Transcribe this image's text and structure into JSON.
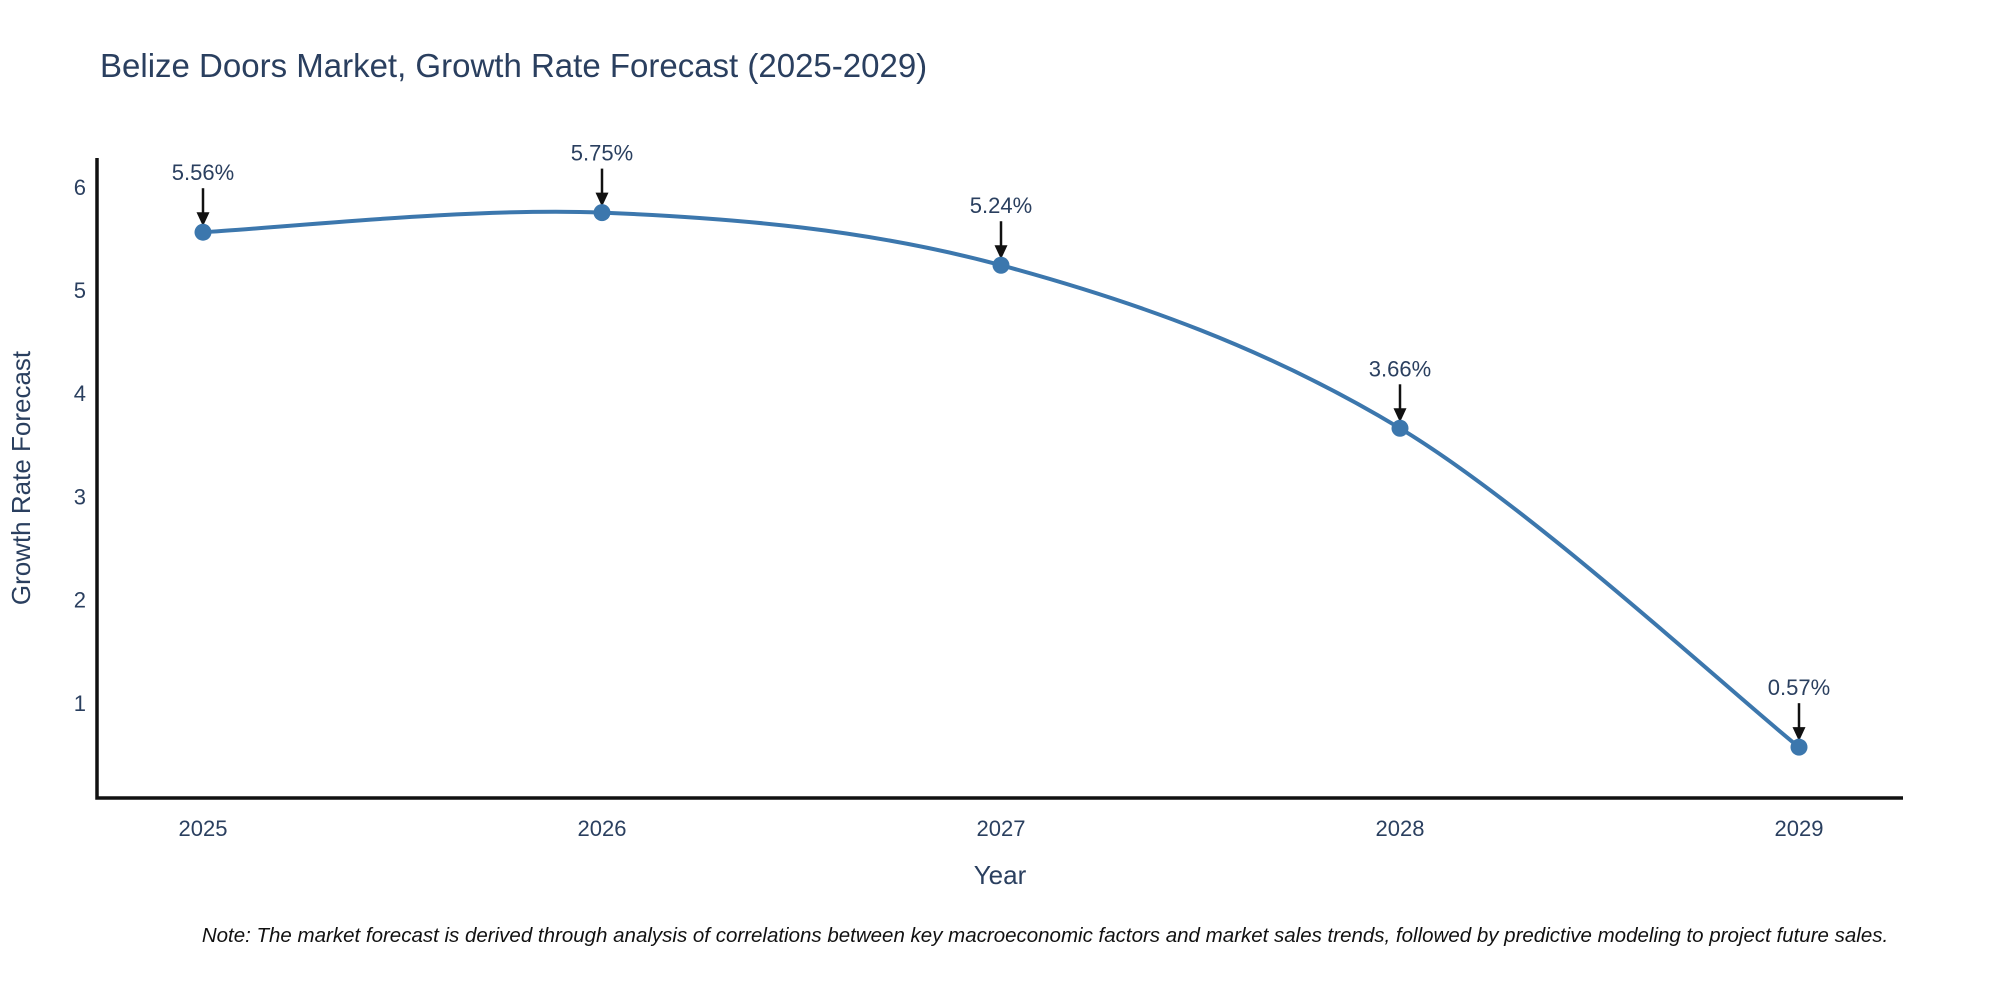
{
  "chart_data": {
    "type": "line",
    "title": "Belize Doors Market, Growth Rate Forecast (2025-2029)",
    "xlabel": "Year",
    "ylabel": "Growth Rate Forecast",
    "x": [
      2025,
      2026,
      2027,
      2028,
      2029
    ],
    "xticks": [
      "2025",
      "2026",
      "2027",
      "2028",
      "2029"
    ],
    "series": [
      {
        "name": "Growth Rate Forecast",
        "values": [
          5.56,
          5.75,
          5.24,
          3.66,
          0.57
        ]
      }
    ],
    "point_labels": [
      "5.56%",
      "5.75%",
      "5.24%",
      "3.66%",
      "0.57%"
    ],
    "yticks": [
      1,
      2,
      3,
      4,
      5,
      6
    ],
    "ylim": [
      0.08,
      6.28
    ],
    "grid": false,
    "legend": "none",
    "line_shape": "spline",
    "note": "Note: The market forecast is derived through analysis of correlations between key macroeconomic factors and market sales trends, followed by predictive modeling to project future sales.",
    "colors": {
      "line": "#3c77ad",
      "marker": "#3c77ad",
      "text": "#2a3f5f",
      "axis": "#111111",
      "arrow": "#111111",
      "background": "#ffffff"
    }
  }
}
